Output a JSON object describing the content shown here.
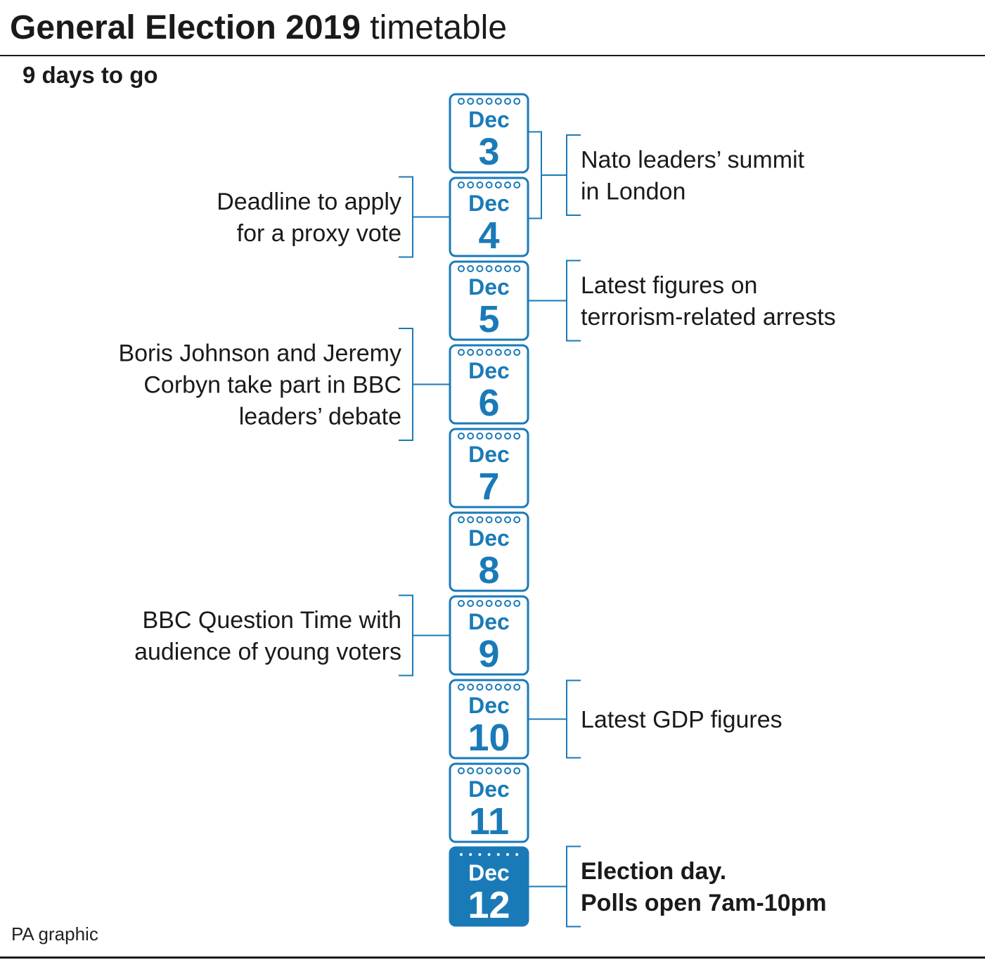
{
  "header": {
    "title_bold": "General Election 2019",
    "title_regular": "timetable",
    "subtitle": "9 days to go"
  },
  "footer": {
    "credit": "PA graphic"
  },
  "colors": {
    "accent": "#1a7ab8",
    "text": "#1a1a1a",
    "highlight_text": "#ffffff"
  },
  "calendar": [
    {
      "month": "Dec",
      "day": "3",
      "highlight": false
    },
    {
      "month": "Dec",
      "day": "4",
      "highlight": false
    },
    {
      "month": "Dec",
      "day": "5",
      "highlight": false
    },
    {
      "month": "Dec",
      "day": "6",
      "highlight": false
    },
    {
      "month": "Dec",
      "day": "7",
      "highlight": false
    },
    {
      "month": "Dec",
      "day": "8",
      "highlight": false
    },
    {
      "month": "Dec",
      "day": "9",
      "highlight": false
    },
    {
      "month": "Dec",
      "day": "10",
      "highlight": false
    },
    {
      "month": "Dec",
      "day": "11",
      "highlight": false
    },
    {
      "month": "Dec",
      "day": "12",
      "highlight": true
    }
  ],
  "events": [
    {
      "side": "right",
      "days": [
        "3",
        "4"
      ],
      "lines": [
        "Nato leaders’ summit",
        "in London"
      ],
      "bold": false
    },
    {
      "side": "left",
      "days": [
        "4"
      ],
      "lines": [
        "Deadline to apply",
        "for a proxy vote"
      ],
      "bold": false
    },
    {
      "side": "right",
      "days": [
        "5"
      ],
      "lines": [
        "Latest figures on",
        "terrorism-related arrests"
      ],
      "bold": false
    },
    {
      "side": "left",
      "days": [
        "6"
      ],
      "lines": [
        "Boris Johnson and Jeremy",
        "Corbyn take part in BBC",
        "leaders’ debate"
      ],
      "bold": false
    },
    {
      "side": "left",
      "days": [
        "9"
      ],
      "lines": [
        "BBC Question Time with",
        "audience of young voters"
      ],
      "bold": false
    },
    {
      "side": "right",
      "days": [
        "10"
      ],
      "lines": [
        "Latest GDP figures"
      ],
      "bold": false
    },
    {
      "side": "right",
      "days": [
        "12"
      ],
      "lines": [
        "Election day.",
        "Polls open 7am-10pm"
      ],
      "bold": true
    }
  ]
}
